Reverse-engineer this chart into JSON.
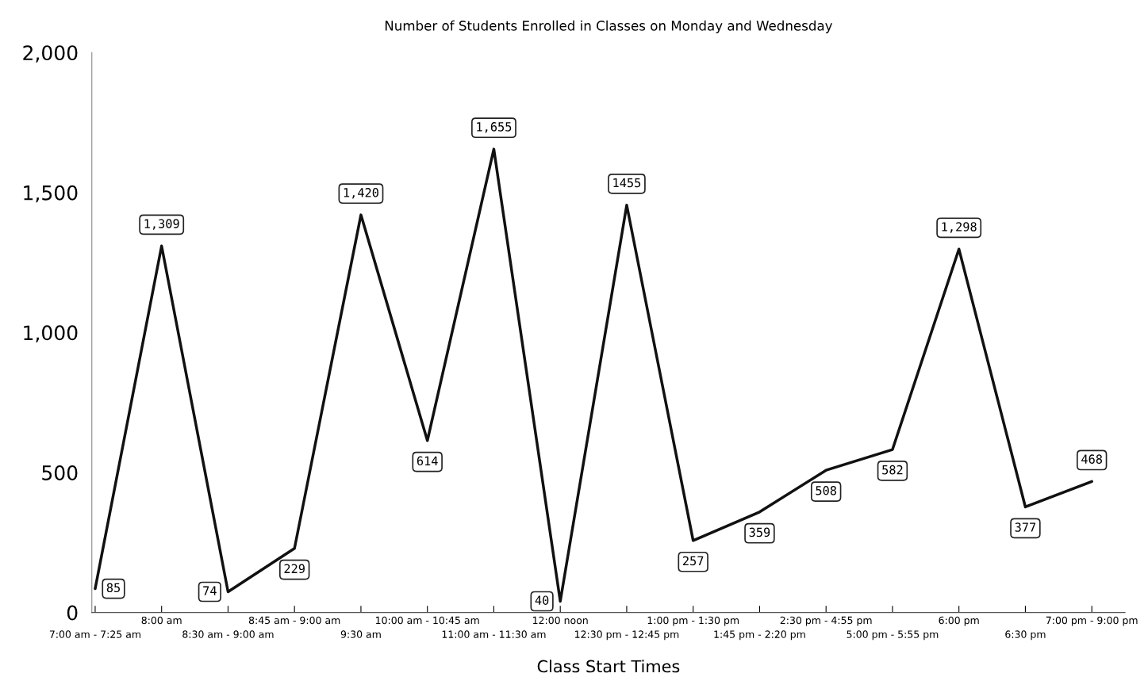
{
  "chart_data": {
    "type": "line",
    "title": "Number of Students Enrolled in Classes on Monday and Wednesday",
    "xlabel": "Class Start Times",
    "categories": [
      "7:00 am - 7:25 am",
      "8:00 am",
      "8:30 am - 9:00 am",
      "8:45 am - 9:00 am",
      "9:30 am",
      "10:00 am - 10:45 am",
      "11:00 am - 11:30 am",
      "12:00 noon",
      "12:30 pm - 12:45 pm",
      "1:00 pm - 1:30 pm",
      "1:45 pm - 2:20 pm",
      "2:30 pm - 4:55 pm",
      "5:00 pm - 5:55 pm",
      "6:00 pm",
      "6:30 pm",
      "7:00 pm - 9:00 pm"
    ],
    "values": [
      85,
      1309,
      74,
      229,
      1420,
      614,
      1655,
      40,
      1455,
      257,
      359,
      508,
      582,
      1298,
      377,
      468
    ],
    "value_labels": [
      "85",
      "1,309",
      "74",
      "229",
      "1,420",
      "614",
      "1,655",
      "40",
      "1455",
      "257",
      "359",
      "508",
      "582",
      "1,298",
      "377",
      "468"
    ],
    "color": "#111111",
    "marker": "none",
    "line_style": "solid",
    "grid": false,
    "legend": false,
    "ylim": [
      0,
      2000
    ],
    "yticks": [
      {
        "value": 0,
        "label": "0"
      },
      {
        "value": 500,
        "label": "500"
      },
      {
        "value": 1000,
        "label": "1,000"
      },
      {
        "value": 1500,
        "label": "1,500"
      },
      {
        "value": 2000,
        "label": "2,000"
      }
    ]
  }
}
